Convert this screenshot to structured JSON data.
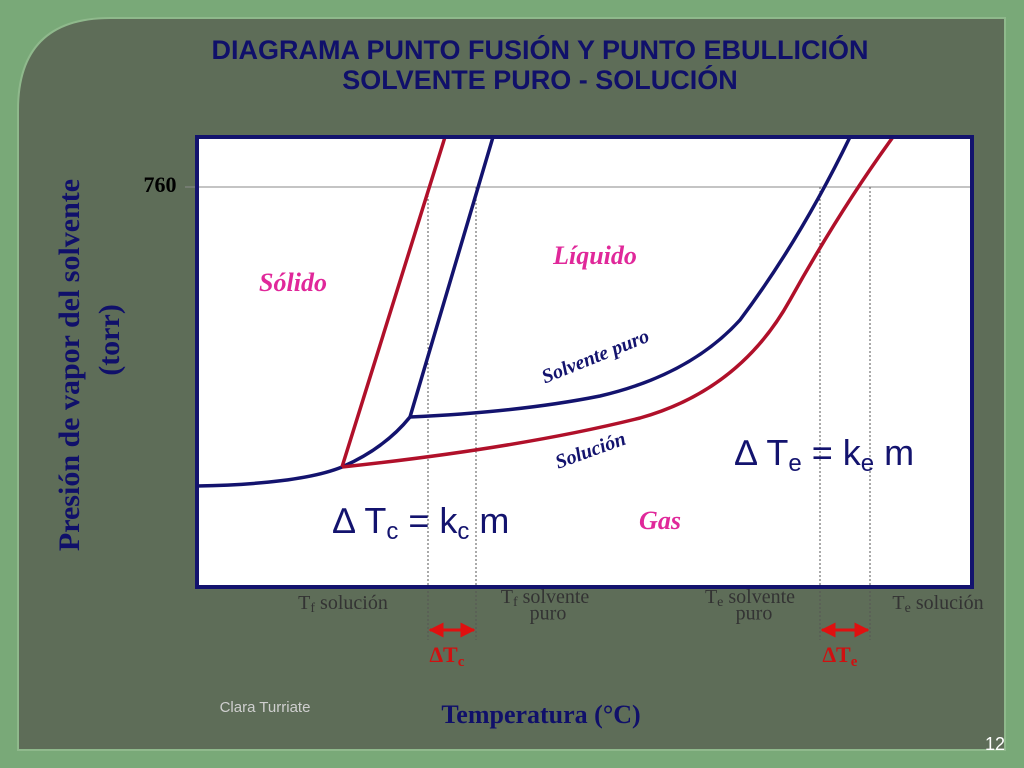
{
  "title": [
    "DIAGRAMA PUNTO FUSIÓN Y PUNTO EBULLICIÓN",
    "SOLVENTE PURO - SOLUCIÓN"
  ],
  "y_axis_label": [
    "Presión de vapor del solvente",
    "(torr)"
  ],
  "x_axis_label": "Temperatura (°C)",
  "y_tick": "760",
  "regions": {
    "solid": "Sólido",
    "liquid": "Líquido",
    "gas": "Gas"
  },
  "curves": {
    "pure": "Solvente puro",
    "solution": "Solución"
  },
  "x_labels": [
    {
      "parts": [
        "T",
        "f",
        " solución"
      ]
    },
    {
      "parts": [
        "T",
        "f",
        " solvente"
      ],
      "line2": "puro"
    },
    {
      "parts": [
        "T",
        "e",
        " solvente"
      ],
      "line2": "puro"
    },
    {
      "parts": [
        "T",
        "e",
        " solución"
      ]
    }
  ],
  "deltas": [
    {
      "parts": [
        "∆T",
        "c"
      ]
    },
    {
      "parts": [
        "∆T",
        "e"
      ]
    }
  ],
  "formulas": [
    {
      "parts": [
        "∆ T",
        "c",
        " = k",
        "c",
        " m"
      ]
    },
    {
      "parts": [
        "∆ T",
        "e",
        " = k",
        "e",
        " m"
      ]
    }
  ],
  "author": "Clara Turriate",
  "page": "12"
}
